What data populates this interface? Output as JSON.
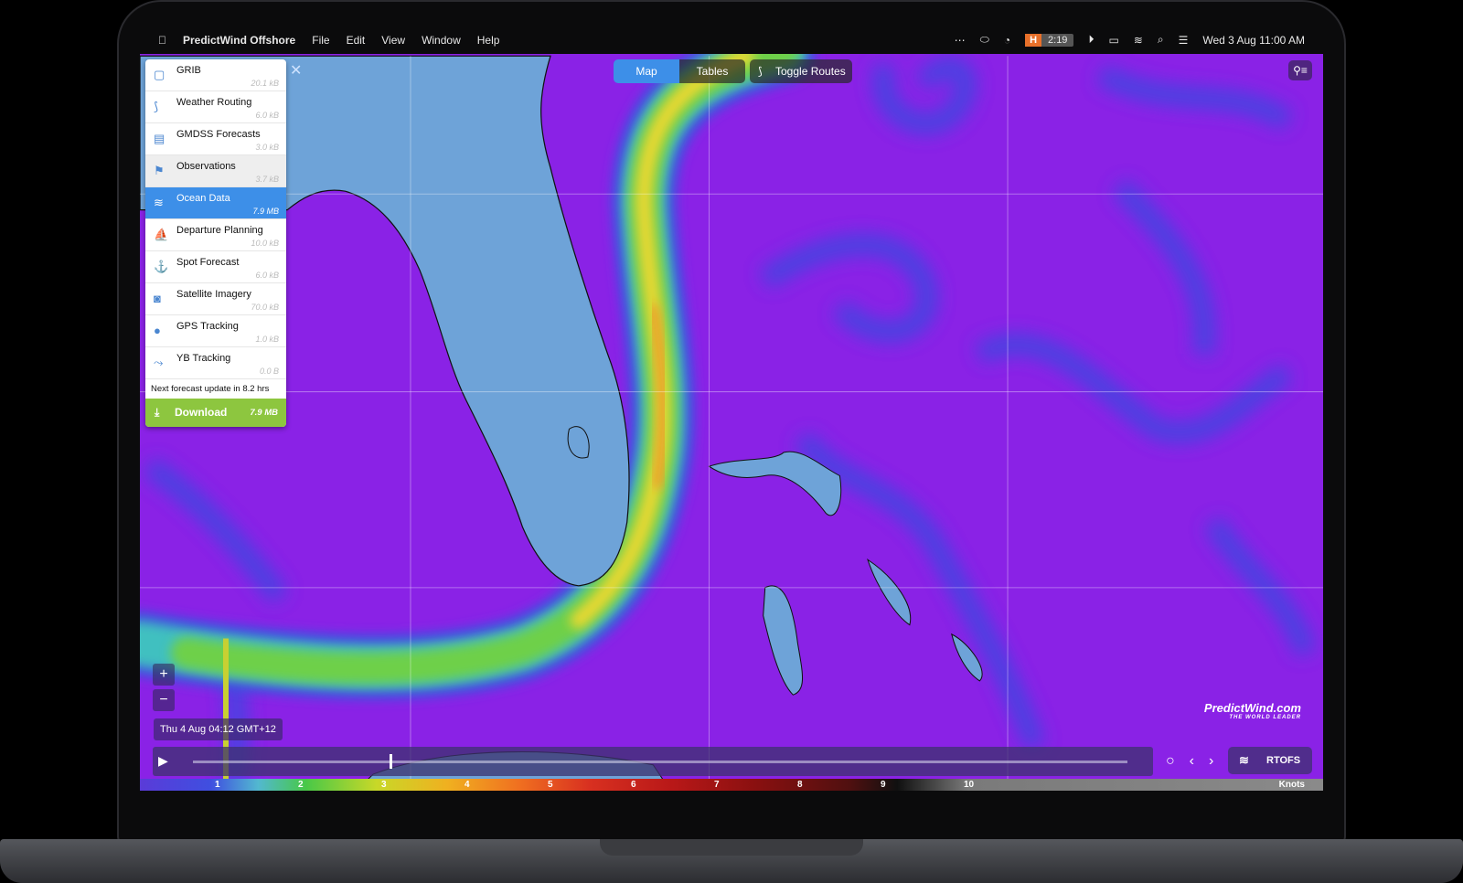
{
  "menubar": {
    "app": "PredictWind Offshore",
    "menus": [
      "File",
      "Edit",
      "View",
      "Window",
      "Help"
    ],
    "timer_badge": "H",
    "timer": "2:19",
    "datetime": "Wed 3 Aug  11:00 AM"
  },
  "sidebar": {
    "items": [
      {
        "label": "GRIB",
        "size": "20.1 kB",
        "icon": "grib-icon"
      },
      {
        "label": "Weather Routing",
        "size": "6.0 kB",
        "icon": "route-icon"
      },
      {
        "label": "GMDSS Forecasts",
        "size": "3.0 kB",
        "icon": "document-icon"
      },
      {
        "label": "Observations",
        "size": "3.7 kB",
        "icon": "flags-icon"
      },
      {
        "label": "Ocean Data",
        "size": "7.9 MB",
        "icon": "waves-icon"
      },
      {
        "label": "Departure Planning",
        "size": "10.0 kB",
        "icon": "sailboat-icon"
      },
      {
        "label": "Spot Forecast",
        "size": "6.0 kB",
        "icon": "anchor-icon"
      },
      {
        "label": "Satellite Imagery",
        "size": "70.0 kB",
        "icon": "camera-icon"
      },
      {
        "label": "GPS Tracking",
        "size": "1.0 kB",
        "icon": "pin-icon"
      },
      {
        "label": "YB Tracking",
        "size": "0.0 B",
        "icon": "tracker-icon"
      }
    ],
    "next_update": "Next forecast update in 8.2 hrs",
    "download_label": "Download",
    "download_size": "7.9 MB",
    "selected": "Ocean Data"
  },
  "view_tabs": {
    "map": "Map",
    "tables": "Tables",
    "toggle_routes": "Toggle Routes",
    "active": "Map"
  },
  "map": {
    "timestamp": "Thu 4 Aug 04:12 GMT+12",
    "timeline_progress": 0.21,
    "model": "RTOFS",
    "logo": "PredictWind.com",
    "logo_tagline": "THE WORLD LEADER"
  },
  "colorbar": {
    "labels": [
      "1",
      "2",
      "3",
      "4",
      "5",
      "6",
      "7",
      "8",
      "9",
      "10"
    ],
    "unit": "Knots"
  },
  "colors": {
    "ocean": "#8a22e6",
    "land": "#6ea3d8",
    "accent": "#3d8fe8",
    "download": "#8dc63f"
  }
}
